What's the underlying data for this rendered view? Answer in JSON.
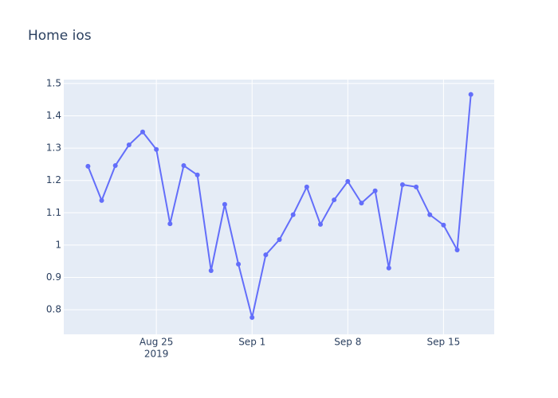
{
  "chart_data": {
    "type": "line",
    "title": "Home ios",
    "x": [
      "2019-08-20",
      "2019-08-21",
      "2019-08-22",
      "2019-08-23",
      "2019-08-24",
      "2019-08-25",
      "2019-08-26",
      "2019-08-27",
      "2019-08-28",
      "2019-08-29",
      "2019-08-30",
      "2019-08-31",
      "2019-09-01",
      "2019-09-02",
      "2019-09-03",
      "2019-09-04",
      "2019-09-05",
      "2019-09-06",
      "2019-09-07",
      "2019-09-08",
      "2019-09-09",
      "2019-09-10",
      "2019-09-11",
      "2019-09-12",
      "2019-09-13",
      "2019-09-14",
      "2019-09-15",
      "2019-09-16",
      "2019-09-17"
    ],
    "series": [
      {
        "color": "#636efa",
        "values": [
          1.244,
          1.138,
          1.246,
          1.31,
          1.35,
          1.296,
          1.066,
          1.246,
          1.217,
          0.921,
          1.126,
          0.941,
          0.776,
          0.97,
          1.017,
          1.094,
          1.18,
          1.064,
          1.14,
          1.197,
          1.13,
          1.168,
          0.929,
          1.187,
          1.18,
          1.094,
          1.062,
          0.985,
          1.466
        ]
      }
    ],
    "xlim": [
      "2019-08-18T05:30",
      "2019-09-18T17:00"
    ],
    "xticks": [
      {
        "value": "2019-08-25",
        "label": "Aug 25",
        "sublabel": "2019"
      },
      {
        "value": "2019-09-01",
        "label": "Sep 1"
      },
      {
        "value": "2019-09-08",
        "label": "Sep 8"
      },
      {
        "value": "2019-09-15",
        "label": "Sep 15"
      }
    ],
    "ylim": [
      0.724,
      1.512
    ],
    "yticks": [
      0.8,
      0.9,
      1,
      1.1,
      1.2,
      1.3,
      1.4,
      1.5
    ],
    "grid": true
  }
}
